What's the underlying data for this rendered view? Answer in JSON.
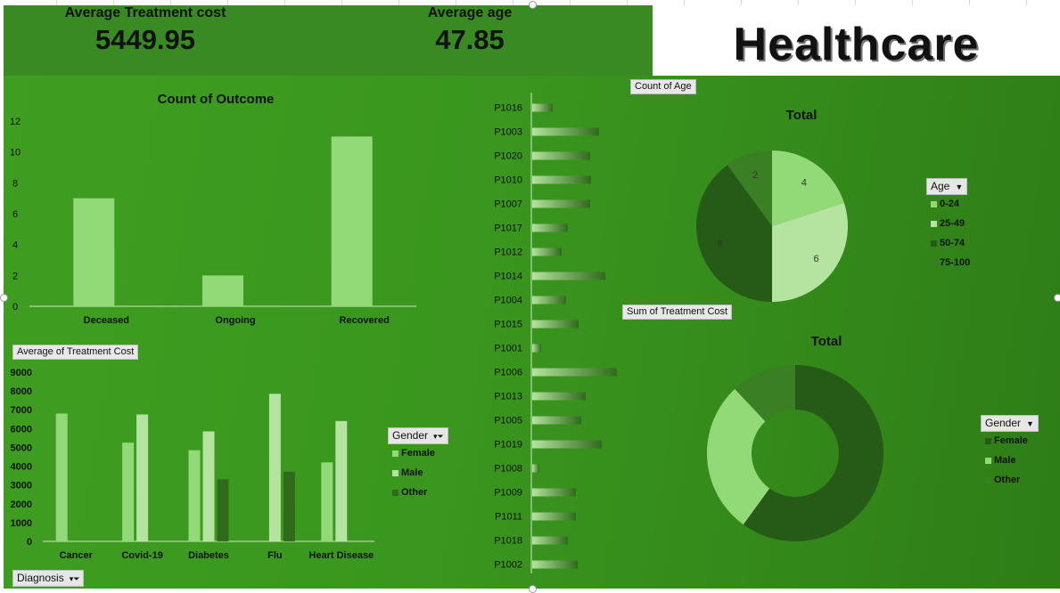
{
  "kpis": {
    "avg_cost_label": "Average Treatment cost",
    "avg_cost_value": "5449.95",
    "avg_age_label": "Average age",
    "avg_age_value": "47.85"
  },
  "brand": {
    "title": "Healthcare"
  },
  "field_chips": {
    "avg_cost": "Average of Treatment Cost",
    "count_age": "Count of Age",
    "sum_cost": "Sum of Treatment Cost"
  },
  "filters": {
    "diagnosis": "Diagnosis",
    "gender": "Gender",
    "age": "Age",
    "gender_donut": "Gender"
  },
  "colors": {
    "light_green": "#92d977",
    "pale_green": "#b5e3a0",
    "dark_green": "#2f6b1b",
    "darker_green": "#265a17",
    "mid_green": "#3b7f25"
  },
  "chart_data": [
    {
      "type": "bar",
      "title": "Count of Outcome",
      "categories": [
        "Deceased",
        "Ongoing",
        "Recovered"
      ],
      "values": [
        7,
        2,
        11
      ],
      "ylim": [
        0,
        12
      ],
      "yticks": [
        0,
        2,
        4,
        6,
        8,
        10,
        12
      ],
      "grid": false
    },
    {
      "type": "bar",
      "title": "",
      "categories": [
        "Cancer",
        "Covid-19",
        "Diabetes",
        "Flu",
        "Heart Disease"
      ],
      "series": [
        {
          "name": "Female",
          "color": "#92d977",
          "values": [
            6800,
            5250,
            4850,
            null,
            4200
          ]
        },
        {
          "name": "Male",
          "color": "#b5e3a0",
          "values": [
            null,
            6750,
            5850,
            7850,
            6400
          ]
        },
        {
          "name": "Other",
          "color": "#2f6b1b",
          "values": [
            null,
            null,
            3300,
            3700,
            null
          ]
        }
      ],
      "ylim": [
        0,
        9000
      ],
      "yticks": [
        0,
        1000,
        2000,
        3000,
        4000,
        5000,
        6000,
        7000,
        8000,
        9000
      ],
      "legend": "right"
    },
    {
      "type": "bar",
      "orientation": "horizontal",
      "categories": [
        "P1016",
        "P1003",
        "P1020",
        "P1010",
        "P1007",
        "P1017",
        "P1012",
        "P1014",
        "P1004",
        "P1015",
        "P1001",
        "P1006",
        "P1013",
        "P1005",
        "P1019",
        "P1008",
        "P1009",
        "P1011",
        "P1018",
        "P1002"
      ],
      "values": [
        23,
        75,
        65,
        66,
        65,
        40,
        33,
        82,
        38,
        52,
        10,
        95,
        60,
        55,
        78,
        8,
        49,
        49,
        40,
        51
      ]
    },
    {
      "type": "pie",
      "title": "Total",
      "labels": [
        "0-24",
        "25-49",
        "50-74",
        "75-100"
      ],
      "values": [
        4,
        6,
        8,
        2
      ],
      "data_labels": [
        "4",
        "6",
        "8",
        "2"
      ],
      "colors": [
        "#92d977",
        "#b5e3a0",
        "#265a17",
        "#3b7f25"
      ],
      "legend": "right"
    },
    {
      "type": "pie",
      "subtype": "donut",
      "title": "Total",
      "labels": [
        "Female",
        "Male",
        "Other"
      ],
      "values": [
        60,
        28,
        12
      ],
      "colors": [
        "#265a17",
        "#92d977",
        "#3b7f25"
      ],
      "legend": "right"
    }
  ]
}
